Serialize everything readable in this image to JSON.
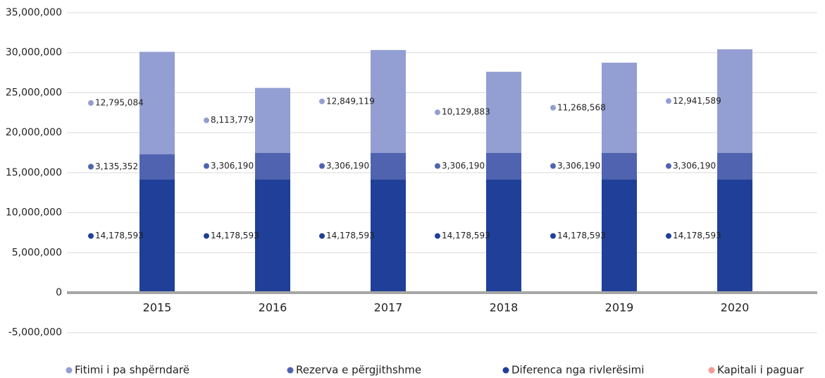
{
  "chart_data": {
    "type": "stacked_bar",
    "categories": [
      "2015",
      "2016",
      "2017",
      "2018",
      "2019",
      "2020"
    ],
    "series": [
      {
        "name": "Fitimi i pa shpërndarë",
        "color": "#939fd2",
        "values": [
          12795084,
          8113779,
          12849119,
          10129883,
          11268568,
          12941589
        ],
        "value_labels": [
          "12,795,084",
          "8,113,779",
          "12,849,119",
          "10,129,883",
          "11,268,568",
          "12,941,589"
        ]
      },
      {
        "name": "Rezerva e përgjithshme",
        "color": "#4f63b0",
        "values": [
          3135352,
          3306190,
          3306190,
          3306190,
          3306190,
          3306190
        ],
        "value_labels": [
          "3,135,352",
          "3,306,190",
          "3,306,190",
          "3,306,190",
          "3,306,190",
          "3,306,190"
        ]
      },
      {
        "name": "Diferenca nga rivlerësimi",
        "color": "#1f3f99",
        "values": [
          14178593,
          14178593,
          14178593,
          14178593,
          14178593,
          14178593
        ],
        "value_labels": [
          "14,178,593",
          "14,178,593",
          "14,178,593",
          "14,178,593",
          "14,178,593",
          "14,178,593"
        ]
      },
      {
        "name": "Kapitali i paguar",
        "color": "#f29a94",
        "values": [
          0,
          0,
          0,
          0,
          0,
          0
        ]
      }
    ],
    "ylim": [
      -5000000,
      35000000
    ],
    "yticks": [
      {
        "value": -5000000,
        "label": "-5,000,000"
      },
      0,
      {
        "value": 5000000,
        "label": "5,000,000"
      },
      {
        "value": 10000000,
        "label": "10,000,000"
      },
      {
        "value": 15000000,
        "label": "15,000,000"
      },
      {
        "value": 20000000,
        "label": "20,000,000"
      },
      {
        "value": 25000000,
        "label": "25,000,000"
      },
      {
        "value": 30000000,
        "label": "30,000,000"
      },
      {
        "value": 35000000,
        "label": "35,000,000"
      }
    ],
    "grid": true,
    "legend": "bottom"
  }
}
